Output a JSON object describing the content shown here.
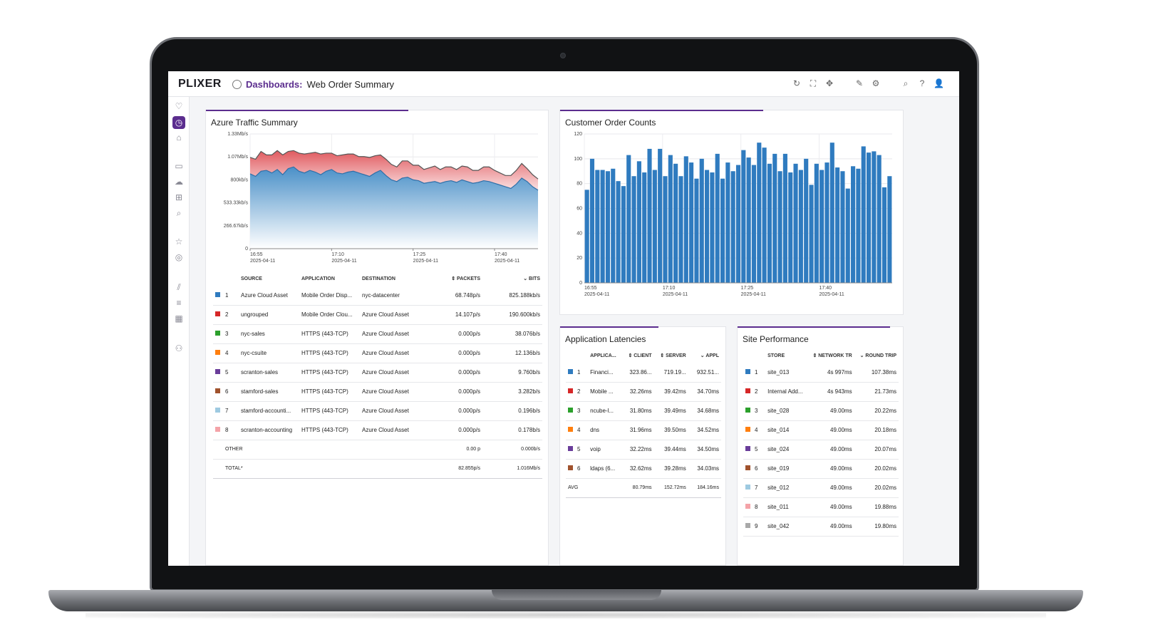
{
  "app": {
    "logo": "PLIXER",
    "breadcrumb_section": "Dashboards:",
    "breadcrumb_page": "Web Order Summary",
    "toolbar_icons": [
      "refresh-icon",
      "fullscreen-icon",
      "move-icon",
      "edit-icon",
      "gear-icon",
      "search-icon",
      "help-icon",
      "user-icon"
    ],
    "toolbar_glyphs": [
      "↻",
      "⛶",
      "✥",
      "✎",
      "⚙",
      "⌕",
      "?",
      "👤"
    ],
    "sidebar_glyphs": [
      "♡",
      "◷",
      "⌂",
      "▭",
      "☁",
      "⊞",
      "⌕",
      "☆",
      "◎",
      "⫽",
      "≡",
      "▦",
      "⚇"
    ],
    "accent_color": "#5b2d8e"
  },
  "traffic": {
    "title": "Azure Traffic Summary",
    "columns": {
      "source": "SOURCE",
      "application": "APPLICATION",
      "destination": "DESTINATION",
      "packets": "⇕ PACKETS",
      "bits": "⌄ BITS"
    },
    "rows": [
      {
        "n": "1",
        "color": "#2f7bbf",
        "source": "Azure Cloud Asset",
        "application": "Mobile Order Disp...",
        "destination": "nyc-datacenter",
        "packets": "68.748p/s",
        "bits": "825.188kb/s"
      },
      {
        "n": "2",
        "color": "#d62728",
        "source": "ungrouped",
        "application": "Mobile Order Clou...",
        "destination": "Azure Cloud Asset",
        "packets": "14.107p/s",
        "bits": "190.600kb/s"
      },
      {
        "n": "3",
        "color": "#2ca02c",
        "source": "nyc-sales",
        "application": "HTTPS (443-TCP)",
        "destination": "Azure Cloud Asset",
        "packets": "0.000p/s",
        "bits": "38.076b/s"
      },
      {
        "n": "4",
        "color": "#ff7f0e",
        "source": "nyc-csuite",
        "application": "HTTPS (443-TCP)",
        "destination": "Azure Cloud Asset",
        "packets": "0.000p/s",
        "bits": "12.136b/s"
      },
      {
        "n": "5",
        "color": "#6a3d9a",
        "source": "scranton-sales",
        "application": "HTTPS (443-TCP)",
        "destination": "Azure Cloud Asset",
        "packets": "0.000p/s",
        "bits": "9.760b/s"
      },
      {
        "n": "6",
        "color": "#a0522d",
        "source": "stamford-sales",
        "application": "HTTPS (443-TCP)",
        "destination": "Azure Cloud Asset",
        "packets": "0.000p/s",
        "bits": "3.282b/s"
      },
      {
        "n": "7",
        "color": "#9ecae1",
        "source": "stamford-accounti...",
        "application": "HTTPS (443-TCP)",
        "destination": "Azure Cloud Asset",
        "packets": "0.000p/s",
        "bits": "0.196b/s"
      },
      {
        "n": "8",
        "color": "#f4a3a8",
        "source": "scranton-accounting",
        "application": "HTTPS (443-TCP)",
        "destination": "Azure Cloud Asset",
        "packets": "0.000p/s",
        "bits": "0.178b/s"
      }
    ],
    "other_label": "OTHER",
    "other_packets": "0.00 p",
    "other_bits": "0.000b/s",
    "total_label": "TOTAL*",
    "total_packets": "82.855p/s",
    "total_bits": "1.016Mb/s"
  },
  "latency": {
    "title": "Application Latencies",
    "columns": {
      "app": "APPLICA...",
      "client": "⇕ CLIENT",
      "server": "⇕ SERVER",
      "appl": "⌄ APPL"
    },
    "rows": [
      {
        "n": "1",
        "color": "#2f7bbf",
        "app": "Financi...",
        "client": "323.86...",
        "server": "719.19...",
        "appl": "932.51..."
      },
      {
        "n": "2",
        "color": "#d62728",
        "app": "Mobile ...",
        "client": "32.26ms",
        "server": "39.42ms",
        "appl": "34.70ms"
      },
      {
        "n": "3",
        "color": "#2ca02c",
        "app": "ncube-l...",
        "client": "31.80ms",
        "server": "39.49ms",
        "appl": "34.68ms"
      },
      {
        "n": "4",
        "color": "#ff7f0e",
        "app": "dns",
        "client": "31.96ms",
        "server": "39.50ms",
        "appl": "34.52ms"
      },
      {
        "n": "5",
        "color": "#6a3d9a",
        "app": "voip",
        "client": "32.22ms",
        "server": "39.44ms",
        "appl": "34.50ms"
      },
      {
        "n": "6",
        "color": "#a0522d",
        "app": "ldaps (6...",
        "client": "32.62ms",
        "server": "39.28ms",
        "appl": "34.03ms"
      }
    ],
    "avg_label": "AVG",
    "avg_client": "80.79ms",
    "avg_server": "152.72ms",
    "avg_appl": "184.16ms"
  },
  "sites": {
    "title": "Site Performance",
    "columns": {
      "store": "STORE",
      "network": "⇕ NETWORK TR",
      "round": "⌄ ROUND TRIP"
    },
    "rows": [
      {
        "n": "1",
        "color": "#2f7bbf",
        "store": "site_013",
        "network": "4s 997ms",
        "round": "107.38ms"
      },
      {
        "n": "2",
        "color": "#d62728",
        "store": "Internal Add...",
        "network": "4s 943ms",
        "round": "21.73ms"
      },
      {
        "n": "3",
        "color": "#2ca02c",
        "store": "site_028",
        "network": "49.00ms",
        "round": "20.22ms"
      },
      {
        "n": "4",
        "color": "#ff7f0e",
        "store": "site_014",
        "network": "49.00ms",
        "round": "20.18ms"
      },
      {
        "n": "5",
        "color": "#6a3d9a",
        "store": "site_024",
        "network": "49.00ms",
        "round": "20.07ms"
      },
      {
        "n": "6",
        "color": "#a0522d",
        "store": "site_019",
        "network": "49.00ms",
        "round": "20.02ms"
      },
      {
        "n": "7",
        "color": "#9ecae1",
        "store": "site_012",
        "network": "49.00ms",
        "round": "20.02ms"
      },
      {
        "n": "8",
        "color": "#f4a3a8",
        "store": "site_011",
        "network": "49.00ms",
        "round": "19.88ms"
      },
      {
        "n": "9",
        "color": "#a9a9a9",
        "store": "site_042",
        "network": "49.00ms",
        "round": "19.80ms"
      }
    ]
  },
  "chart_data": [
    {
      "type": "area",
      "title": "Azure Traffic Summary",
      "y_tick_labels": [
        "0",
        "266.67kb/s",
        "533.33kb/s",
        "800kb/s",
        "1.07Mb/s",
        "1.33Mb/s"
      ],
      "ylim": [
        0,
        1333
      ],
      "unit": "kb/s",
      "x_tick_labels": [
        [
          "16:55",
          "2025-04-11"
        ],
        [
          "17:10",
          "2025-04-11"
        ],
        [
          "17:25",
          "2025-04-11"
        ],
        [
          "17:40",
          "2025-04-11"
        ]
      ],
      "x_tick_positions": [
        0,
        15,
        30,
        45
      ],
      "xlim": [
        0,
        53
      ],
      "series": [
        {
          "color": "#4a90c8",
          "values": [
            870,
            840,
            900,
            910,
            880,
            920,
            860,
            930,
            950,
            900,
            880,
            910,
            890,
            860,
            900,
            920,
            880,
            870,
            890,
            900,
            880,
            860,
            840,
            880,
            910,
            850,
            800,
            780,
            820,
            830,
            800,
            790,
            760,
            770,
            780,
            760,
            780,
            790,
            770,
            800,
            780,
            760,
            770,
            790,
            780,
            760,
            740,
            720,
            700,
            750,
            820,
            780,
            720,
            680
          ]
        },
        {
          "color": "#e05a5f",
          "values": [
            190,
            200,
            230,
            180,
            210,
            220,
            230,
            200,
            190,
            210,
            220,
            200,
            230,
            240,
            210,
            190,
            200,
            220,
            210,
            200,
            190,
            210,
            220,
            200,
            180,
            190,
            180,
            170,
            200,
            190,
            170,
            180,
            160,
            170,
            180,
            160,
            170,
            160,
            150,
            160,
            170,
            150,
            140,
            160,
            170,
            150,
            140,
            130,
            150,
            160,
            170,
            150,
            140,
            130
          ]
        }
      ]
    },
    {
      "type": "bar",
      "title": "Customer Order Counts",
      "y_tick_labels": [
        "0",
        "20",
        "40",
        "60",
        "80",
        "100",
        "120"
      ],
      "ylim": [
        0,
        120
      ],
      "x_tick_labels": [
        [
          "16:55",
          "2025-04-11"
        ],
        [
          "17:10",
          "2025-04-11"
        ],
        [
          "17:25",
          "2025-04-11"
        ],
        [
          "17:40",
          "2025-04-11"
        ]
      ],
      "x_tick_positions": [
        0,
        15,
        30,
        45
      ],
      "color": "#2f7bbf",
      "values": [
        75,
        100,
        91,
        91,
        90,
        92,
        82,
        78,
        103,
        86,
        98,
        89,
        108,
        91,
        108,
        86,
        103,
        96,
        86,
        102,
        97,
        84,
        100,
        91,
        89,
        104,
        84,
        97,
        90,
        95,
        107,
        101,
        95,
        113,
        109,
        96,
        104,
        90,
        104,
        89,
        96,
        91,
        100,
        79,
        96,
        91,
        97,
        113,
        93,
        90,
        76,
        94,
        92,
        110,
        105,
        106,
        103,
        77,
        86
      ]
    }
  ]
}
